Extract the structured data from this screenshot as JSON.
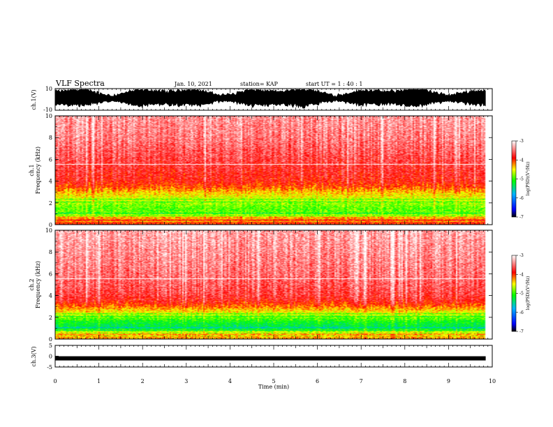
{
  "header": {
    "title": "VLF Spectra",
    "date": "Jan. 10, 2021",
    "station": "station= KAP",
    "start": "start  UT =  1 : 40 : 1"
  },
  "chart_data": [
    {
      "type": "line",
      "name": "ch1-waveform",
      "ylabel": "ch.1(V)",
      "ylim": [
        -10,
        10
      ],
      "yticks": [
        "10",
        "-10"
      ],
      "xlim": [
        0,
        10
      ],
      "data_end_min": 9.85
    },
    {
      "type": "heatmap",
      "name": "ch1-spectrogram",
      "ylabel": "Frequency (kHz)",
      "ylabel_ch": "ch.1",
      "xlim": [
        0,
        10
      ],
      "ylim": [
        0,
        10
      ],
      "yticks": [
        "0",
        "2",
        "4",
        "6",
        "8",
        "10"
      ],
      "data_end_min": 9.85,
      "colorbar": {
        "label": "log(PSD)(V²/Hz)",
        "range": [
          -7,
          -3
        ],
        "ticks": [
          "-3",
          "-4",
          "-5",
          "-6",
          "-7"
        ]
      },
      "profile": {
        "freq_khz": [
          0.5,
          1.0,
          1.5,
          2.0,
          2.5,
          3.0,
          3.5,
          4.0,
          5.0,
          6.0,
          7.0,
          8.0,
          9.0,
          10.0
        ],
        "mean_log_psd": [
          -4.0,
          -4.9,
          -4.9,
          -4.75,
          -4.55,
          -4.35,
          -4.05,
          -3.85,
          -3.75,
          -3.65,
          -3.55,
          -3.45,
          -3.4,
          -3.35
        ]
      }
    },
    {
      "type": "heatmap",
      "name": "ch2-spectrogram",
      "ylabel": "Frequency (kHz)",
      "ylabel_ch": "ch.2",
      "xlim": [
        0,
        10
      ],
      "ylim": [
        0,
        10
      ],
      "yticks": [
        "0",
        "2",
        "4",
        "6",
        "8",
        "10"
      ],
      "data_end_min": 9.85,
      "colorbar": {
        "label": "log(PSD)(V²/Hz)",
        "range": [
          -7,
          -3
        ],
        "ticks": [
          "-3",
          "-4",
          "-5",
          "-6",
          "-7"
        ]
      },
      "profile": {
        "freq_khz": [
          0.5,
          1.0,
          1.5,
          2.0,
          2.5,
          3.0,
          3.5,
          4.0,
          5.0,
          6.0,
          7.0,
          8.0,
          9.0,
          10.0
        ],
        "mean_log_psd": [
          -4.3,
          -5.35,
          -5.2,
          -4.85,
          -4.5,
          -4.15,
          -3.85,
          -3.7,
          -3.6,
          -3.5,
          -3.45,
          -3.4,
          -3.35,
          -3.3
        ]
      }
    },
    {
      "type": "line",
      "name": "ch3-waveform",
      "ylabel": "ch.3(V)",
      "ylim": [
        -5,
        5
      ],
      "yticks": [
        "5",
        "0",
        "-5"
      ],
      "level": -1,
      "xlim": [
        0,
        10
      ],
      "data_end_min": 9.85
    }
  ],
  "x_axis": {
    "label": "Time (min)",
    "ticks": [
      "0",
      "1",
      "2",
      "3",
      "4",
      "5",
      "6",
      "7",
      "8",
      "9",
      "10"
    ]
  },
  "colors": {
    "colormap": [
      "#000000",
      "#0000ff",
      "#00b4ff",
      "#00ff00",
      "#ffff00",
      "#ff0000",
      "#ffffff"
    ]
  }
}
